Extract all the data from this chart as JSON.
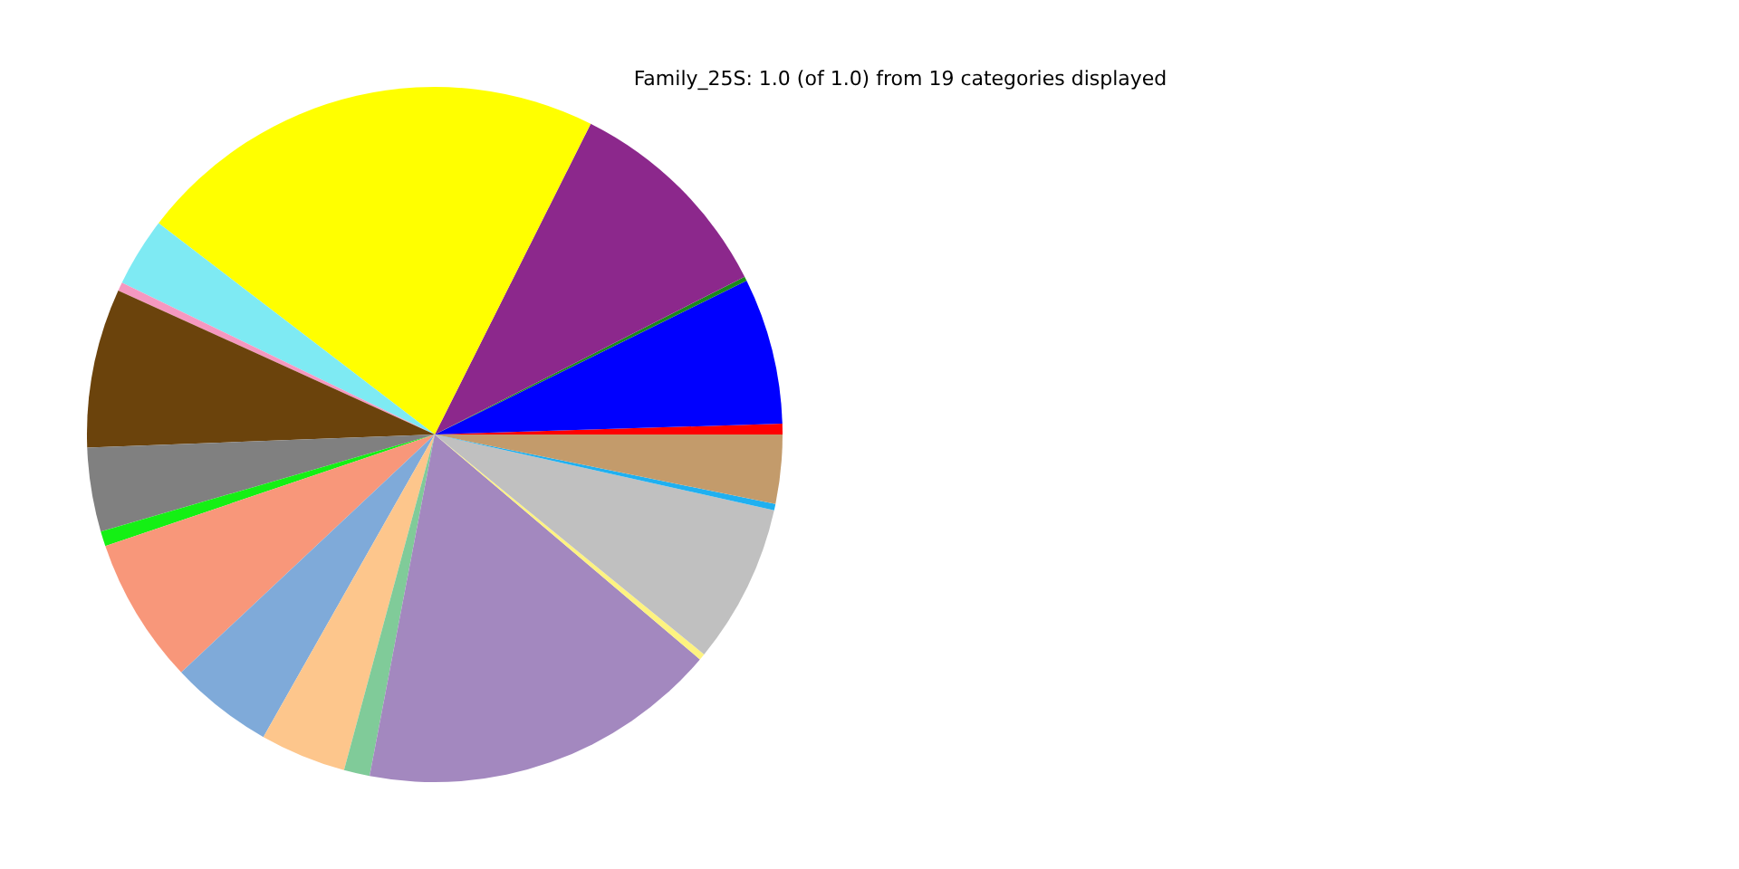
{
  "chart_data": {
    "type": "pie",
    "title": "Family_25S: 1.0 (of 1.0) from 19 categories displayed",
    "categories": [
      null,
      null,
      null,
      null,
      null,
      null,
      null,
      null,
      null,
      null,
      null,
      null,
      null,
      null,
      null,
      null,
      null,
      null,
      null
    ],
    "values": [
      0.5,
      6.8,
      0.2,
      10.1,
      22.0,
      3.2,
      0.4,
      7.4,
      3.9,
      0.7,
      6.8,
      4.8,
      4.0,
      1.2,
      16.8,
      0.3,
      7.4,
      0.3,
      3.2
    ],
    "colors": [
      "#ff0000",
      "#0000ff",
      "#1a8a1a",
      "#8c288c",
      "#ffff00",
      "#7eeaf3",
      "#f598c0",
      "#6b430c",
      "#808080",
      "#14f014",
      "#f8977a",
      "#7faad9",
      "#fdc68c",
      "#80cb99",
      "#a388bf",
      "#fef380",
      "#c0c0c0",
      "#20b0f0",
      "#c39b6b"
    ]
  }
}
